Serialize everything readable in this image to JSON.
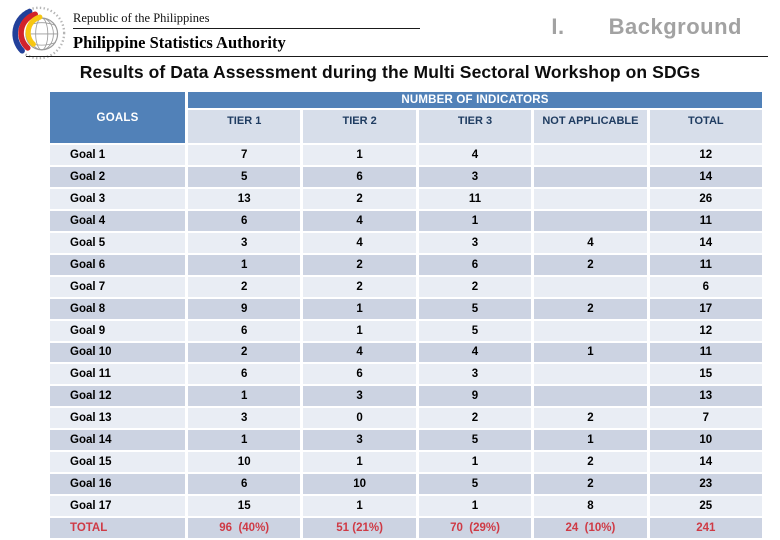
{
  "header": {
    "republic_line": "Republic of the Philippines",
    "agency": "Philippine Statistics Authority",
    "section": {
      "numeral": "I.",
      "label": "Background"
    }
  },
  "title": "Results of Data Assessment during the Multi Sectoral Workshop on SDGs",
  "table": {
    "corner_header": "GOALS",
    "group_header": "NUMBER OF INDICATORS",
    "columns": [
      "TIER 1",
      "TIER 2",
      "TIER 3",
      "NOT APPLICABLE",
      "TOTAL"
    ],
    "rows": [
      {
        "goal": "Goal 1",
        "values": [
          "7",
          "1",
          "4",
          "",
          "12"
        ]
      },
      {
        "goal": "Goal 2",
        "values": [
          "5",
          "6",
          "3",
          "",
          "14"
        ]
      },
      {
        "goal": "Goal 3",
        "values": [
          "13",
          "2",
          "11",
          "",
          "26"
        ]
      },
      {
        "goal": "Goal 4",
        "values": [
          "6",
          "4",
          "1",
          "",
          "11"
        ]
      },
      {
        "goal": "Goal 5",
        "values": [
          "3",
          "4",
          "3",
          "4",
          "14"
        ]
      },
      {
        "goal": "Goal 6",
        "values": [
          "1",
          "2",
          "6",
          "2",
          "11"
        ]
      },
      {
        "goal": "Goal 7",
        "values": [
          "2",
          "2",
          "2",
          "",
          "6"
        ]
      },
      {
        "goal": "Goal 8",
        "values": [
          "9",
          "1",
          "5",
          "2",
          "17"
        ]
      },
      {
        "goal": "Goal 9",
        "values": [
          "6",
          "1",
          "5",
          "",
          "12"
        ]
      },
      {
        "goal": "Goal 10",
        "values": [
          "2",
          "4",
          "4",
          "1",
          "11"
        ]
      },
      {
        "goal": "Goal 11",
        "values": [
          "6",
          "6",
          "3",
          "",
          "15"
        ]
      },
      {
        "goal": "Goal 12",
        "values": [
          "1",
          "3",
          "9",
          "",
          "13"
        ]
      },
      {
        "goal": "Goal 13",
        "values": [
          "3",
          "0",
          "2",
          "2",
          "7"
        ]
      },
      {
        "goal": "Goal 14",
        "values": [
          "1",
          "3",
          "5",
          "1",
          "10"
        ]
      },
      {
        "goal": "Goal 15",
        "values": [
          "10",
          "1",
          "1",
          "2",
          "14"
        ]
      },
      {
        "goal": "Goal 16",
        "values": [
          "6",
          "10",
          "5",
          "2",
          "23"
        ]
      },
      {
        "goal": "Goal 17",
        "values": [
          "15",
          "1",
          "1",
          "8",
          "25"
        ]
      }
    ],
    "total_row": {
      "goal": "TOTAL",
      "values": [
        "96  (40%)",
        "51 (21%)",
        "70  (29%)",
        "24  (10%)",
        "241"
      ]
    }
  },
  "colors": {
    "header_blue": "#5181b8",
    "subheader_bg": "#d7deea",
    "subheader_text": "#1f3c61",
    "band_light": "#e9edf4",
    "band_dark": "#ccd3e2",
    "total_red": "#cf3a45",
    "section_gray": "#a2a2a2"
  }
}
